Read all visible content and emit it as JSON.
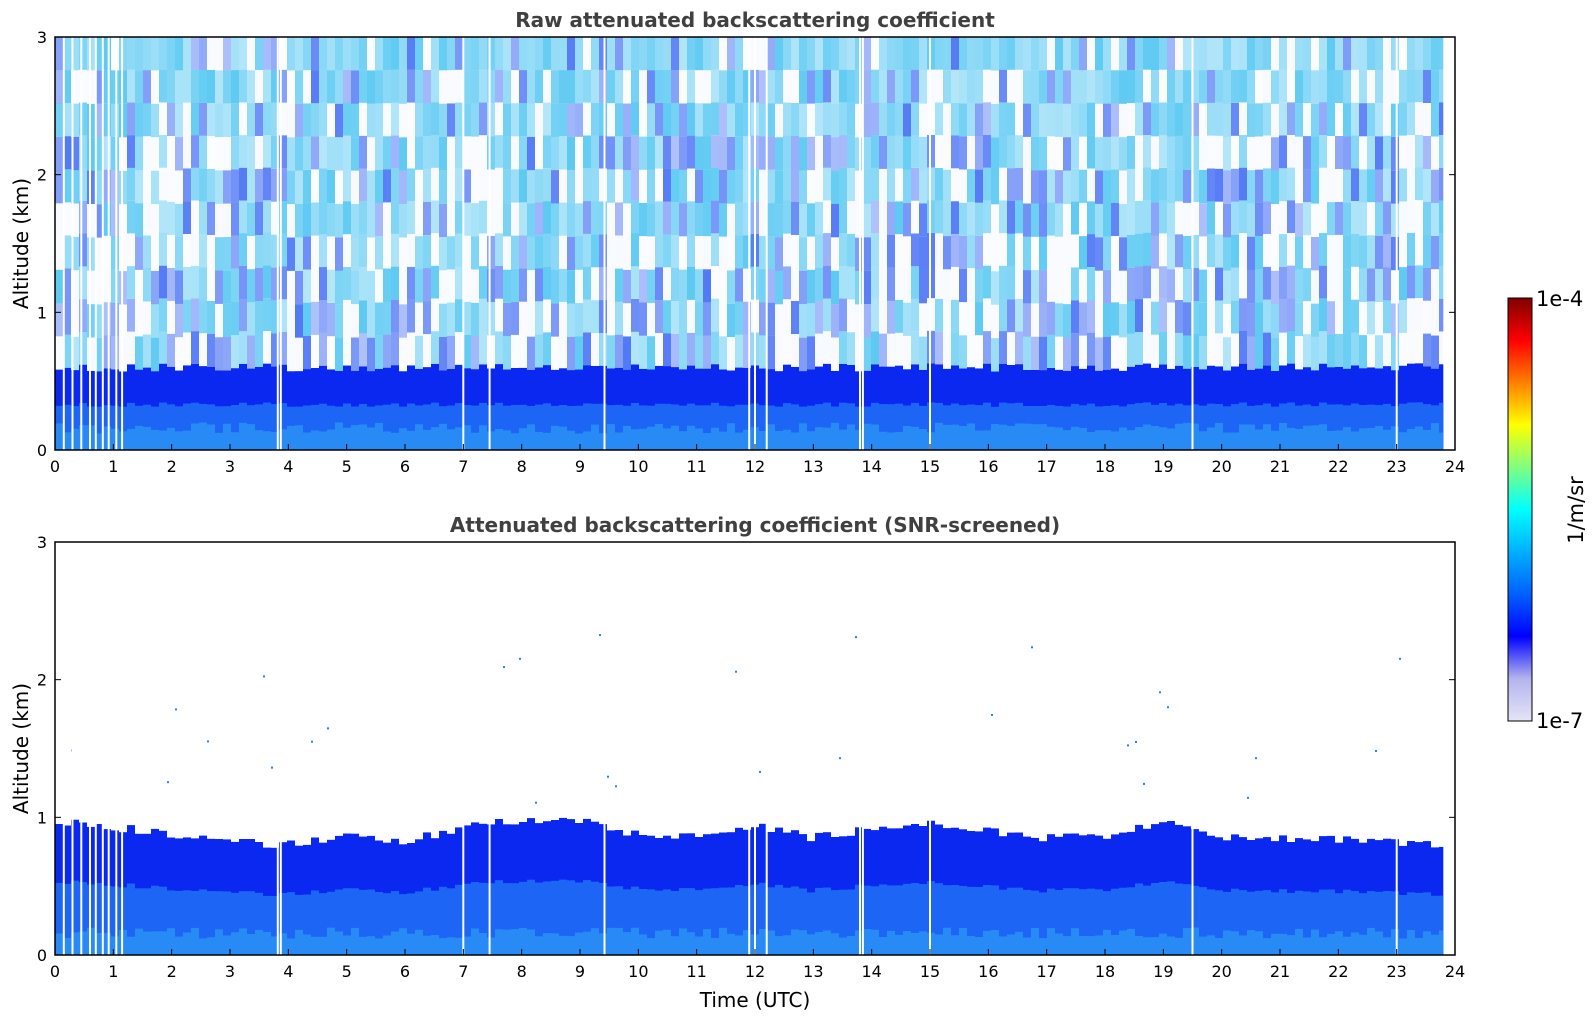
{
  "chart_data": [
    {
      "type": "heatmap",
      "title": "Raw attenuated backscattering coefficient",
      "xlabel": "",
      "ylabel": "Altitude (km)",
      "xlim": [
        0,
        24
      ],
      "ylim": [
        0,
        3
      ],
      "x_ticks": [
        "0",
        "1",
        "2",
        "3",
        "4",
        "5",
        "6",
        "7",
        "8",
        "9",
        "10",
        "11",
        "12",
        "13",
        "14",
        "15",
        "16",
        "17",
        "18",
        "19",
        "20",
        "21",
        "22",
        "23",
        "24"
      ],
      "y_ticks": [
        "0",
        "1",
        "2",
        "3"
      ],
      "screened": false,
      "data_end_hour": 23.8,
      "dense_layer_top_km": 0.6,
      "gap_hours": [
        0.15,
        0.3,
        0.45,
        0.6,
        0.7,
        0.82,
        0.92,
        1.05,
        1.15,
        3.82,
        3.87,
        7.0,
        7.45,
        9.42,
        11.9,
        12.0,
        12.2,
        13.8,
        13.85,
        15.0,
        19.5,
        23.0
      ]
    },
    {
      "type": "heatmap",
      "title": "Attenuated backscattering coefficient (SNR-screened)",
      "xlabel": "Time (UTC)",
      "ylabel": "Altitude (km)",
      "xlim": [
        0,
        24
      ],
      "ylim": [
        0,
        3
      ],
      "x_ticks": [
        "0",
        "1",
        "2",
        "3",
        "4",
        "5",
        "6",
        "7",
        "8",
        "9",
        "10",
        "11",
        "12",
        "13",
        "14",
        "15",
        "16",
        "17",
        "18",
        "19",
        "20",
        "21",
        "22",
        "23",
        "24"
      ],
      "y_ticks": [
        "0",
        "1",
        "2",
        "3"
      ],
      "screened": true,
      "data_end_hour": 23.8,
      "boundary_layer_top_km": [
        [
          0,
          0.97
        ],
        [
          1,
          0.93
        ],
        [
          2,
          0.88
        ],
        [
          3,
          0.82
        ],
        [
          4,
          0.8
        ],
        [
          5,
          0.86
        ],
        [
          6,
          0.82
        ],
        [
          7,
          0.93
        ],
        [
          8,
          0.98
        ],
        [
          9,
          0.97
        ],
        [
          10,
          0.88
        ],
        [
          11,
          0.87
        ],
        [
          12,
          0.95
        ],
        [
          13,
          0.85
        ],
        [
          14,
          0.92
        ],
        [
          15,
          0.96
        ],
        [
          16,
          0.9
        ],
        [
          17,
          0.85
        ],
        [
          18,
          0.87
        ],
        [
          19,
          0.96
        ],
        [
          20,
          0.86
        ],
        [
          21,
          0.85
        ],
        [
          22,
          0.84
        ],
        [
          23,
          0.82
        ],
        [
          23.8,
          0.8
        ]
      ],
      "gap_hours": [
        0.15,
        0.3,
        0.45,
        0.6,
        0.7,
        0.82,
        0.92,
        1.05,
        1.15,
        3.82,
        3.87,
        7.0,
        7.45,
        9.42,
        11.9,
        12.0,
        12.2,
        13.8,
        13.85,
        15.0,
        19.5,
        23.0
      ]
    }
  ],
  "colorbar": {
    "label": "1/m/sr",
    "max_label": "1e-4",
    "min_label": "1e-7",
    "colors": [
      "#e4e4f8",
      "#b4b4ee",
      "#0000ff",
      "#0060ff",
      "#00b0ff",
      "#00ffff",
      "#80ff80",
      "#ffff00",
      "#ff8000",
      "#ff0000",
      "#800000"
    ]
  }
}
